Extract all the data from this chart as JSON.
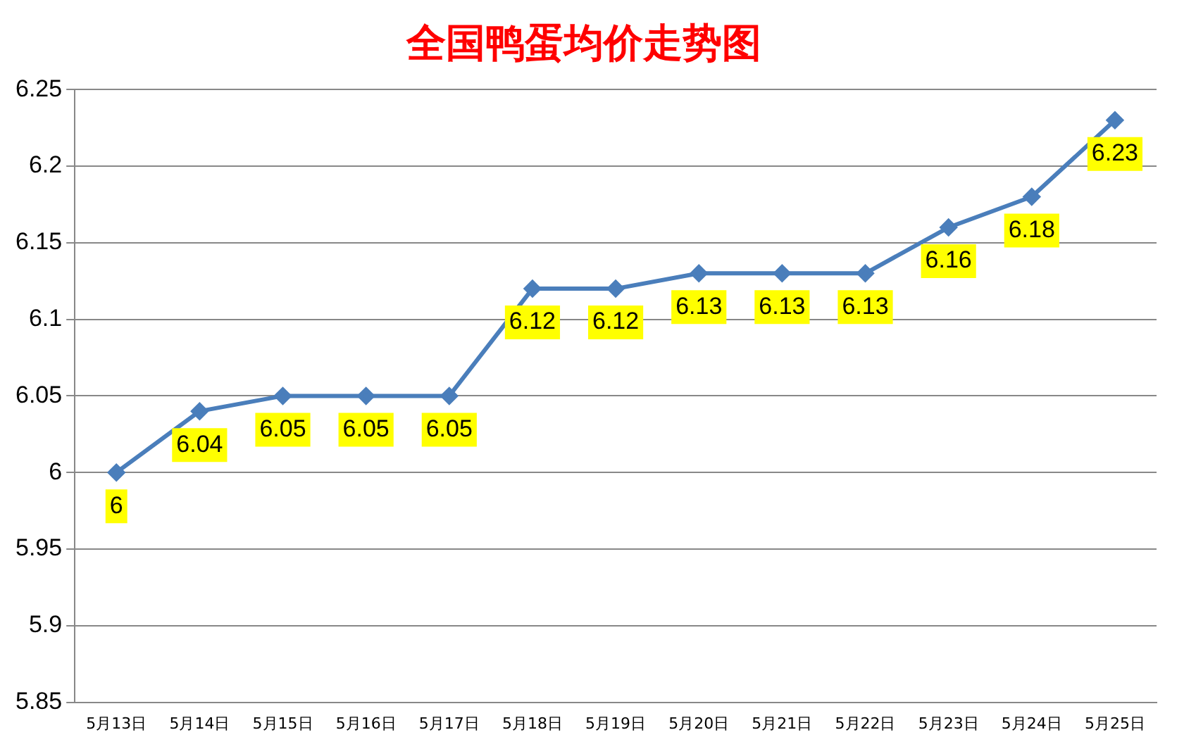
{
  "chart_data": {
    "type": "line",
    "title": "全国鸭蛋均价走势图",
    "categories": [
      "5月13日",
      "5月14日",
      "5月15日",
      "5月16日",
      "5月17日",
      "5月18日",
      "5月19日",
      "5月20日",
      "5月21日",
      "5月22日",
      "5月23日",
      "5月24日",
      "5月25日"
    ],
    "series": [
      {
        "color": "#4a7ebb",
        "values": [
          6,
          6.04,
          6.05,
          6.05,
          6.05,
          6.12,
          6.12,
          6.13,
          6.13,
          6.13,
          6.16,
          6.18,
          6.23
        ]
      }
    ],
    "ylim": [
      5.85,
      6.25
    ],
    "yticks": [
      5.85,
      5.9,
      5.95,
      6,
      6.05,
      6.1,
      6.15,
      6.2,
      6.25
    ],
    "grid": "y",
    "marker": "diamond",
    "line_style": "solid",
    "data_labels": true,
    "legend": false
  }
}
